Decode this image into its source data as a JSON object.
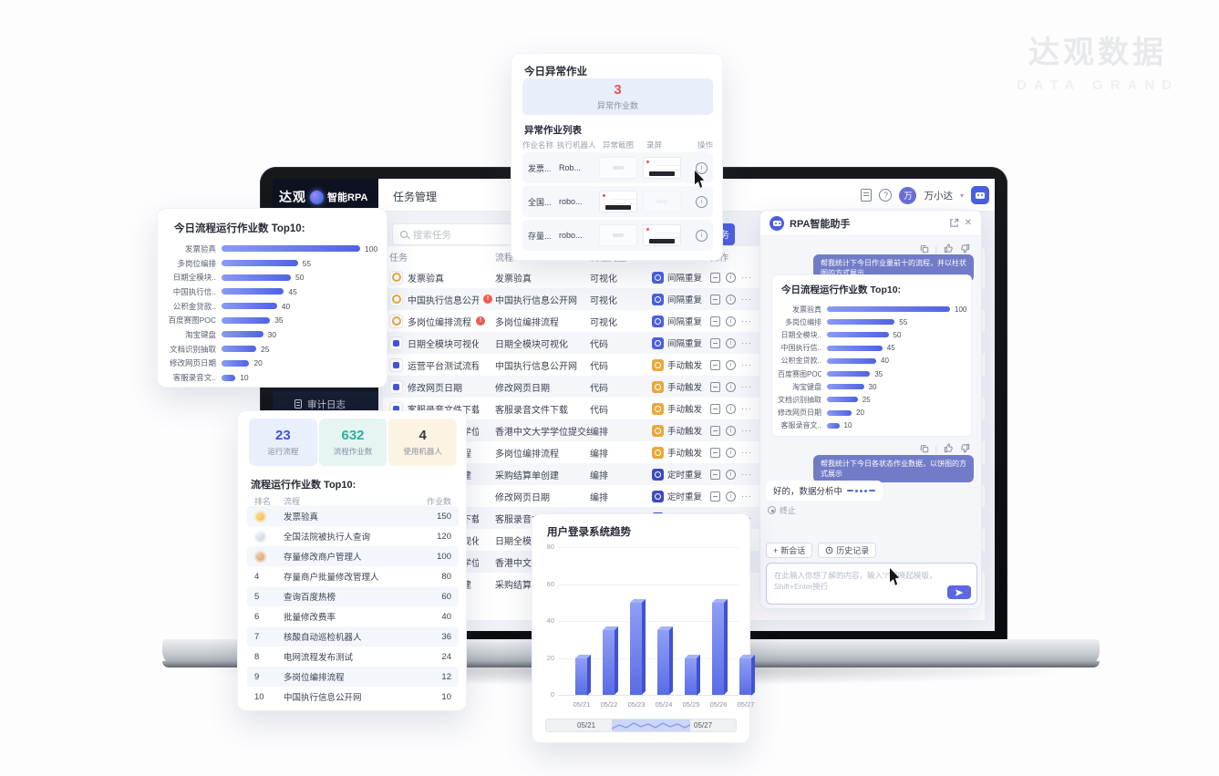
{
  "watermark": {
    "cn": "达观数据",
    "en": "DATA GRAND"
  },
  "laptop": {
    "logo": {
      "part1": "达观",
      "part2": "智能RPA"
    },
    "topbar": {
      "tab": "任务管理",
      "avatar_char": "万",
      "username": "万小达"
    },
    "sidebar": {
      "audit_log": "审计日志"
    },
    "toolbar": {
      "search_placeholder": "搜索任务",
      "create_button": "新建任务"
    },
    "task_table": {
      "headers": {
        "task": "任务",
        "flow": "流程",
        "type": "流程类型",
        "trigger": "触发方式",
        "ops": "操作"
      },
      "rows": [
        {
          "icon": "visual",
          "alert": false,
          "task": "发票验真",
          "flow": "发票验真",
          "type": "可视化",
          "trigger": "间隔重复",
          "trigger_kind": "interval"
        },
        {
          "icon": "visual",
          "alert": true,
          "task": "中国执行信息公开网",
          "flow": "中国执行信息公开网",
          "type": "可视化",
          "trigger": "间隔重复",
          "trigger_kind": "interval"
        },
        {
          "icon": "visual",
          "alert": true,
          "task": "多岗位编排流程",
          "flow": "多岗位编排流程",
          "type": "可视化",
          "trigger": "间隔重复",
          "trigger_kind": "interval"
        },
        {
          "icon": "code",
          "alert": false,
          "task": "日期全模块可视化",
          "flow": "日期全模块可视化",
          "type": "代码",
          "trigger": "间隔重复",
          "trigger_kind": "interval"
        },
        {
          "icon": "code",
          "alert": false,
          "task": "运营平台测试流程",
          "flow": "中国执行信息公开网",
          "type": "代码",
          "trigger": "手动触发",
          "trigger_kind": "manual"
        },
        {
          "icon": "code",
          "alert": false,
          "task": "修改网页日期",
          "flow": "修改网页日期",
          "type": "代码",
          "trigger": "手动触发",
          "trigger_kind": "manual"
        },
        {
          "icon": "code",
          "alert": false,
          "task": "客服录音文件下载",
          "flow": "客服录音文件下载",
          "type": "代码",
          "trigger": "手动触发",
          "trigger_kind": "manual"
        },
        {
          "icon": "orch",
          "alert": false,
          "task": "香港中文大学学位提交结果查...",
          "flow": "香港中文大学学位提交结果查...",
          "type": "编排",
          "trigger": "手动触发",
          "trigger_kind": "manual"
        },
        {
          "icon": "orch",
          "alert": false,
          "task": "多岗位编排流程",
          "flow": "多岗位编排流程",
          "type": "编排",
          "trigger": "手动触发",
          "trigger_kind": "manual"
        },
        {
          "icon": "orch",
          "alert": false,
          "task": "采购结算单创建",
          "flow": "采购结算单创建",
          "type": "编排",
          "trigger": "定时重复",
          "trigger_kind": "timer"
        },
        {
          "icon": "orch",
          "alert": false,
          "task": "修改网页日期",
          "flow": "修改网页日期",
          "type": "编排",
          "trigger": "定时重复",
          "trigger_kind": "timer"
        },
        {
          "icon": "orch",
          "alert": false,
          "task": "客服录音文件下载",
          "flow": "客服录音文件下载",
          "type": "编排",
          "trigger": "定时重复",
          "trigger_kind": "timer"
        },
        {
          "icon": "orch",
          "alert": false,
          "task": "日期全模块可视化",
          "flow": "日期全模块可视化",
          "type": "编排",
          "trigger": "定时重复",
          "trigger_kind": "timer"
        },
        {
          "icon": "orch",
          "alert": false,
          "task": "香港中文大学学位提交结果查...",
          "flow": "香港中文大学学位提交结果查...",
          "type": "编排",
          "trigger": "定时重复",
          "trigger_kind": "timer"
        },
        {
          "icon": "orch",
          "alert": false,
          "task": "采购结算单创建",
          "flow": "采购结算单创建",
          "type": "编排",
          "trigger": "定时重复",
          "trigger_kind": "timer"
        }
      ]
    }
  },
  "anomaly_card": {
    "title": "今日异常作业",
    "count": "3",
    "count_label": "异常作业数",
    "list_title": "异常作业列表",
    "headers": [
      "作业名称",
      "执行机器人",
      "异常截图",
      "录屏",
      "操作"
    ],
    "rows": [
      {
        "name": "发票...",
        "robot": "Rob...",
        "screenshot_col": 2
      },
      {
        "name": "全国...",
        "robot": "robo...",
        "screenshot_col": 1
      },
      {
        "name": "存量...",
        "robot": "robo...",
        "screenshot_col": 2
      }
    ]
  },
  "top10_card": {
    "title": "今日流程运行作业数 Top10:"
  },
  "stats_card": {
    "stats": [
      {
        "value": "23",
        "label": "运行流程"
      },
      {
        "value": "632",
        "label": "流程作业数"
      },
      {
        "value": "4",
        "label": "使用机器人"
      }
    ],
    "table_title": "流程运行作业数 Top10:",
    "headers": {
      "rank": "排名",
      "flow": "流程",
      "count": "作业数"
    }
  },
  "assistant": {
    "title": "RPA智能助手",
    "bubble1": "帮我统计下今日作业量前十的流程，并以柱状图的方式展示",
    "bubble2": "帮我统计下今日各状态作业数据，以饼图的方式展示",
    "reply_text": "好的，数据分析中",
    "stop_label": "终止",
    "new_chat": "新会话",
    "history": "历史记录",
    "input_placeholder": "在此输入你想了解的内容，输入\"/\"可唤起模版，Shift+Enter换行"
  },
  "chart_data": [
    {
      "type": "bar",
      "orientation": "horizontal",
      "title": "今日流程运行作业数 Top10:",
      "categories": [
        "发票验真",
        "多岗位编排",
        "日期全模块..",
        "中国执行信..",
        "公积金贷款..",
        "百度赛图POC",
        "淘宝键盘",
        "文档识别抽取",
        "修改网页日期",
        "客服录音文.."
      ],
      "values": [
        100,
        55,
        50,
        45,
        40,
        35,
        30,
        25,
        20,
        10
      ],
      "xlim": [
        0,
        100
      ],
      "legend": "none",
      "note": "shown twice: left floating card and RPA assistant panel"
    },
    {
      "type": "table",
      "title": "流程运行作业数 Top10:",
      "columns": [
        "排名",
        "流程",
        "作业数"
      ],
      "rows": [
        [
          "1",
          "发票验真",
          "150"
        ],
        [
          "2",
          "全国法院被执行人查询",
          "120"
        ],
        [
          "3",
          "存量修改商户管理人",
          "100"
        ],
        [
          "4",
          "存量商户批量修改管理人",
          "80"
        ],
        [
          "5",
          "查询百度热榜",
          "60"
        ],
        [
          "6",
          "批量修改费率",
          "40"
        ],
        [
          "7",
          "核酸自动巡检机器人",
          "36"
        ],
        [
          "8",
          "电网流程发布测试",
          "24"
        ],
        [
          "9",
          "多岗位编排流程",
          "12"
        ],
        [
          "10",
          "中国执行信息公开网",
          "10"
        ]
      ]
    },
    {
      "type": "bar",
      "style": "3d",
      "title": "用户登录系统趋势",
      "categories": [
        "05/21",
        "05/22",
        "05/23",
        "05/24",
        "05/25",
        "05/26",
        "05/27"
      ],
      "values": [
        20,
        35,
        50,
        35,
        20,
        50,
        20
      ],
      "ylim": [
        0,
        80
      ],
      "yticks": [
        0,
        20,
        40,
        60,
        80
      ],
      "grid": true,
      "datazoom": {
        "start_label": "05/21",
        "end_label": "05/27"
      }
    }
  ],
  "colors": {
    "accent": "#4a5fe0",
    "bar_gradient_start": "#8a9af3",
    "bar_gradient_end": "#4f63e2",
    "alert_red": "#e4574e",
    "manual_yellow": "#e7a93c",
    "timer_indigo": "#3d4bc0",
    "stat_blue": "#4053de",
    "stat_teal": "#2fae9d"
  }
}
